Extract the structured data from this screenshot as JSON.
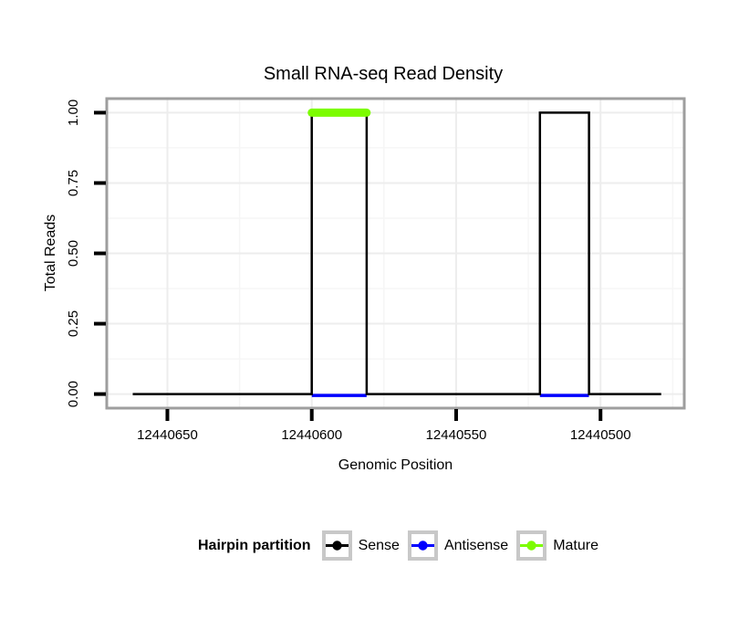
{
  "title": "Small RNA-seq Read Density",
  "chart_data": {
    "type": "line",
    "title": "Small RNA-seq Read Density",
    "xlabel": "Genomic Position",
    "ylabel": "Total Reads",
    "x_axis_reversed": true,
    "x_domain": [
      12440671,
      12440471
    ],
    "y_domain": [
      -0.05,
      1.05
    ],
    "x_ticks": [
      {
        "value": 12440650,
        "label": "12440650"
      },
      {
        "value": 12440600,
        "label": "12440600"
      },
      {
        "value": 12440550,
        "label": "12440550"
      },
      {
        "value": 12440500,
        "label": "12440500"
      }
    ],
    "y_ticks": [
      {
        "value": 0.0,
        "label": "0.00"
      },
      {
        "value": 0.25,
        "label": "0.25"
      },
      {
        "value": 0.5,
        "label": "0.50"
      },
      {
        "value": 0.75,
        "label": "0.75"
      },
      {
        "value": 1.0,
        "label": "1.00"
      }
    ],
    "x_minor": [
      12440625,
      12440575,
      12440525,
      12440475
    ],
    "y_minor": [
      0.125,
      0.375,
      0.625,
      0.875
    ],
    "grid": true,
    "series": [
      {
        "name": "Sense",
        "color": "#000000",
        "style": "step",
        "line_width": 2.5,
        "points": [
          [
            12440662,
            0
          ],
          [
            12440600,
            0
          ],
          [
            12440600,
            1
          ],
          [
            12440581,
            1
          ],
          [
            12440581,
            0
          ],
          [
            12440521,
            0
          ],
          [
            12440521,
            1
          ],
          [
            12440504,
            1
          ],
          [
            12440504,
            0
          ],
          [
            12440479,
            0
          ]
        ]
      },
      {
        "name": "Antisense",
        "color": "#0000ff",
        "style": "segments",
        "line_width": 3.5,
        "y": 0,
        "segments": [
          [
            12440600,
            12440581
          ],
          [
            12440521,
            12440504
          ]
        ]
      },
      {
        "name": "Mature",
        "color": "#7cfc00",
        "style": "segments",
        "line_width": 9,
        "linecap": "round",
        "y": 1,
        "segments": [
          [
            12440600,
            12440581
          ]
        ]
      }
    ],
    "legend": {
      "title": "Hairpin partition",
      "position": "bottom",
      "entries": [
        {
          "label": "Sense",
          "color": "#000000"
        },
        {
          "label": "Antisense",
          "color": "#0000ff"
        },
        {
          "label": "Mature",
          "color": "#7cfc00"
        }
      ]
    }
  },
  "colors": {
    "panel_background": "#ffffff",
    "panel_border": "#9e9e9e",
    "grid_major": "#ededed",
    "grid_minor": "#f6f6f6",
    "tick_mark": "#000000",
    "legend_key_border": "#c8c8c8"
  }
}
